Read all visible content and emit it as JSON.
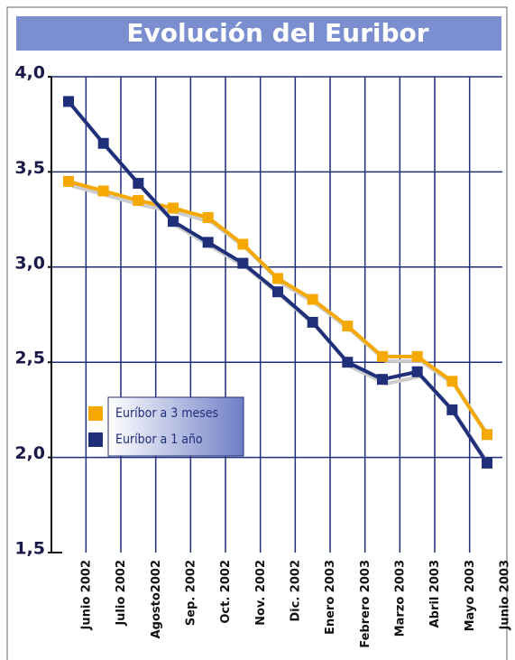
{
  "chart_data": {
    "type": "line",
    "title": "Evolución del Euribor",
    "categories": [
      "Junio 2002",
      "Julio 2002",
      "Agosto2002",
      "Sep. 2002",
      "Oct. 2002",
      "Nov. 2002",
      "Dic. 2002",
      "Enero 2003",
      "Febrero 2003",
      "Marzo 2003",
      "Abril 2003",
      "Mayo 2003",
      "Junio 2003"
    ],
    "series": [
      {
        "name": "Euríbor a 3 meses",
        "color": "#f5a800",
        "values": [
          3.45,
          3.4,
          3.35,
          3.31,
          3.26,
          3.12,
          2.94,
          2.83,
          2.69,
          2.53,
          2.53,
          2.4,
          2.12
        ]
      },
      {
        "name": "Euríbor a 1 año",
        "color": "#1f2f7a",
        "values": [
          3.87,
          3.65,
          3.44,
          3.24,
          3.13,
          3.02,
          2.87,
          2.71,
          2.5,
          2.41,
          2.45,
          2.25,
          1.97
        ]
      }
    ],
    "ylim": [
      1.5,
      4.0
    ],
    "yticks": [
      {
        "value": 1.5,
        "label": "1,5"
      },
      {
        "value": 2.0,
        "label": "2,0"
      },
      {
        "value": 2.5,
        "label": "2,5"
      },
      {
        "value": 3.0,
        "label": "3,0"
      },
      {
        "value": 3.5,
        "label": "3,5"
      },
      {
        "value": 4.0,
        "label": "4,0"
      }
    ],
    "grid": true
  }
}
